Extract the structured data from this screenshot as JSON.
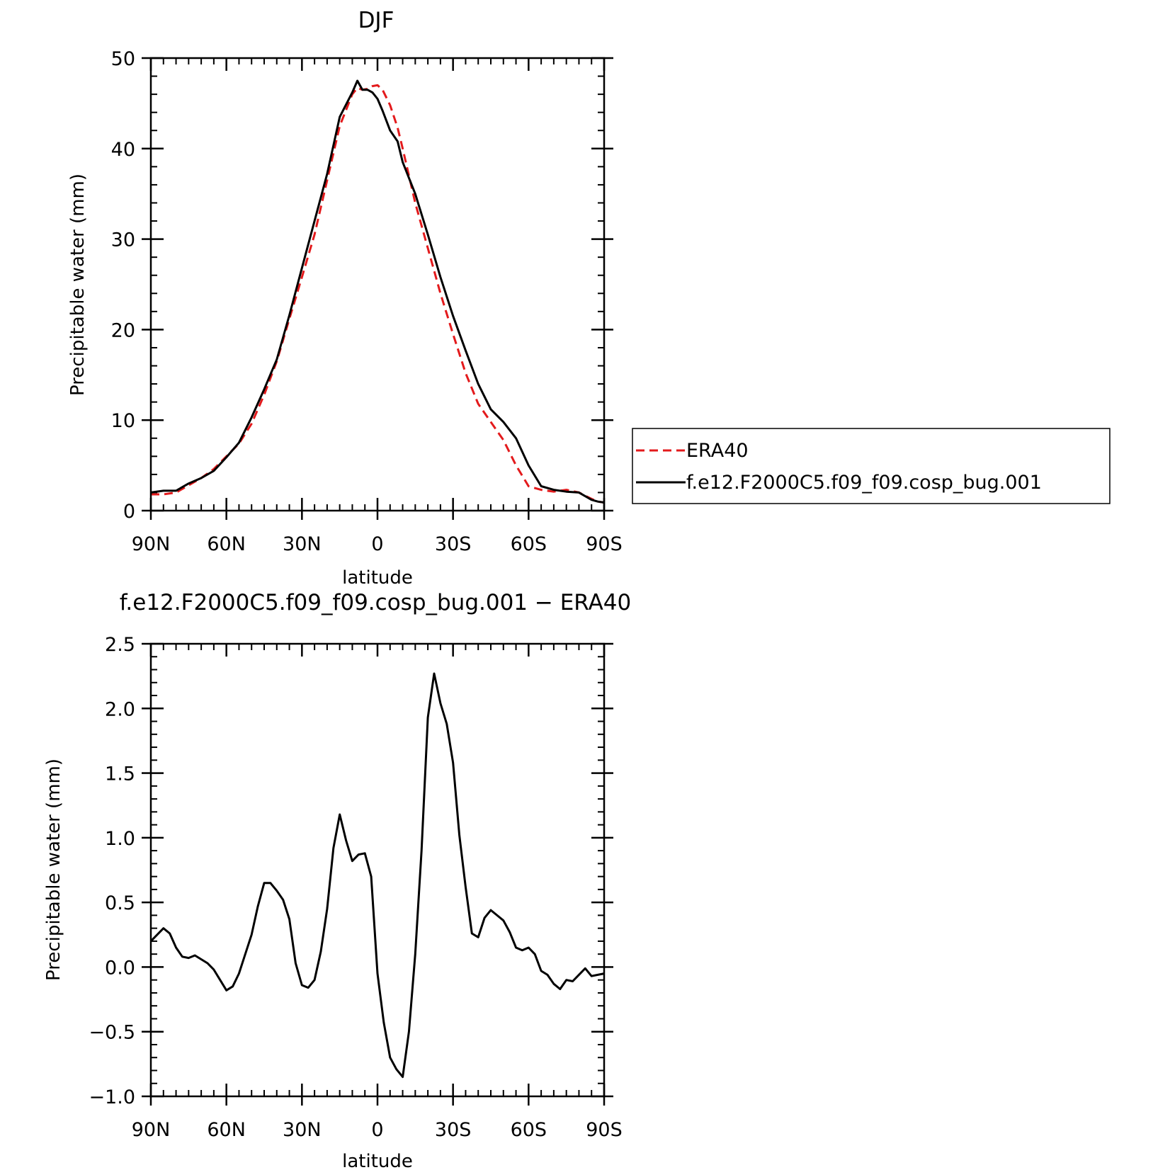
{
  "chart_data": [
    {
      "type": "line",
      "title": "DJF",
      "xlabel": "latitude",
      "ylabel": "Precipitable water (mm)",
      "xlim": [
        90,
        -90
      ],
      "ylim": [
        0,
        50
      ],
      "x_ticks": [
        90,
        60,
        30,
        0,
        -30,
        -60,
        -90
      ],
      "x_tick_labels": [
        "90N",
        "60N",
        "30N",
        "0",
        "30S",
        "60S",
        "90S"
      ],
      "y_ticks": [
        0,
        10,
        20,
        30,
        40,
        50
      ],
      "y_tick_labels": [
        "0",
        "10",
        "20",
        "30",
        "40",
        "50"
      ],
      "legend": {
        "placement": "right of plot"
      },
      "series": [
        {
          "name": "ERA40",
          "color": "#e31a1c",
          "dash": "dashed",
          "x": [
            90,
            85,
            80,
            75,
            70,
            65,
            60,
            55,
            50,
            45,
            40,
            35,
            30,
            25,
            20,
            15,
            10,
            8,
            6,
            4,
            2,
            0,
            -2,
            -5,
            -8,
            -10,
            -15,
            -20,
            -25,
            -30,
            -35,
            -40,
            -45,
            -50,
            -55,
            -60,
            -65,
            -70,
            -75,
            -80,
            -85,
            -87.5,
            -90
          ],
          "y": [
            1.8,
            1.8,
            2.0,
            2.8,
            3.6,
            4.6,
            6.0,
            7.4,
            9.6,
            12.8,
            16.5,
            21.2,
            25.8,
            30.5,
            36.5,
            42.5,
            46.0,
            46.7,
            46.5,
            46.6,
            46.9,
            47.0,
            46.5,
            44.8,
            42.3,
            40.0,
            34.0,
            29.0,
            24.0,
            19.5,
            15.2,
            11.8,
            9.8,
            7.8,
            5.0,
            2.7,
            2.3,
            2.1,
            2.3,
            2.0,
            1.3,
            1.0,
            0.9
          ]
        },
        {
          "name": "f.e12.F2000C5.f09_f09.cosp_bug.001",
          "color": "#000000",
          "dash": "solid",
          "x": [
            90,
            85,
            80,
            75,
            70,
            65,
            60,
            55,
            50,
            45,
            40,
            35,
            30,
            25,
            20,
            15,
            10,
            8,
            6,
            4,
            2,
            0,
            -2,
            -5,
            -8,
            -10,
            -15,
            -20,
            -25,
            -30,
            -35,
            -40,
            -45,
            -50,
            -55,
            -60,
            -65,
            -70,
            -75,
            -80,
            -85,
            -87.5,
            -90
          ],
          "y": [
            2.0,
            2.2,
            2.2,
            3.0,
            3.6,
            4.4,
            5.9,
            7.5,
            10.3,
            13.4,
            16.7,
            21.6,
            26.8,
            32.0,
            37.2,
            43.5,
            46.2,
            47.5,
            46.5,
            46.5,
            46.2,
            45.5,
            44.2,
            42.0,
            40.8,
            38.5,
            35.0,
            30.5,
            25.8,
            21.5,
            17.7,
            14.0,
            11.2,
            9.8,
            8.0,
            5.0,
            2.7,
            2.3,
            2.1,
            2.0,
            1.2,
            1.0,
            0.9
          ]
        }
      ]
    },
    {
      "type": "line",
      "title": "f.e12.F2000C5.f09_f09.cosp_bug.001 − ERA40",
      "xlabel": "latitude",
      "ylabel": "Precipitable water (mm)",
      "xlim": [
        90,
        -90
      ],
      "ylim": [
        -1.0,
        2.5
      ],
      "x_ticks": [
        90,
        60,
        30,
        0,
        -30,
        -60,
        -90
      ],
      "x_tick_labels": [
        "90N",
        "60N",
        "30N",
        "0",
        "30S",
        "60S",
        "90S"
      ],
      "y_ticks": [
        -1.0,
        -0.5,
        0.0,
        0.5,
        1.0,
        1.5,
        2.0,
        2.5
      ],
      "y_tick_labels": [
        "−1.0",
        "−0.5",
        "0.0",
        "0.5",
        "1.0",
        "1.5",
        "2.0",
        "2.5"
      ],
      "series": [
        {
          "color": "#000000",
          "dash": "solid",
          "x": [
            90,
            87.5,
            85,
            82.5,
            80,
            77.5,
            75,
            72.5,
            70,
            67.5,
            65,
            62.5,
            60,
            57.5,
            55,
            52.5,
            50,
            47.5,
            45,
            42.5,
            40,
            37.5,
            35,
            32.5,
            30,
            27.5,
            25,
            22.5,
            20,
            17.5,
            15,
            12.5,
            10,
            7.5,
            5,
            2.5,
            0,
            -2.5,
            -5,
            -7.5,
            -10,
            -12.5,
            -15,
            -17.5,
            -20,
            -22.5,
            -25,
            -27.5,
            -30,
            -32.5,
            -35,
            -37.5,
            -40,
            -42.5,
            -45,
            -47.5,
            -50,
            -52.5,
            -55,
            -57.5,
            -60,
            -62.5,
            -65,
            -67.5,
            -70,
            -72.5,
            -75,
            -77.5,
            -80,
            -82.5,
            -85,
            -87.5,
            -90
          ],
          "y": [
            0.2,
            0.25,
            0.3,
            0.26,
            0.15,
            0.08,
            0.07,
            0.09,
            0.06,
            0.03,
            -0.02,
            -0.1,
            -0.18,
            -0.15,
            -0.05,
            0.1,
            0.25,
            0.47,
            0.65,
            0.65,
            0.59,
            0.52,
            0.37,
            0.03,
            -0.14,
            -0.16,
            -0.1,
            0.12,
            0.45,
            0.92,
            1.18,
            0.98,
            0.82,
            0.87,
            0.88,
            0.7,
            -0.05,
            -0.43,
            -0.7,
            -0.79,
            -0.85,
            -0.5,
            0.1,
            0.9,
            1.93,
            2.27,
            2.04,
            1.88,
            1.58,
            1.02,
            0.62,
            0.26,
            0.23,
            0.38,
            0.44,
            0.4,
            0.36,
            0.27,
            0.15,
            0.13,
            0.15,
            0.1,
            -0.03,
            -0.06,
            -0.13,
            -0.17,
            -0.1,
            -0.11,
            -0.06,
            -0.01,
            -0.07,
            -0.06,
            -0.05
          ]
        }
      ]
    }
  ]
}
